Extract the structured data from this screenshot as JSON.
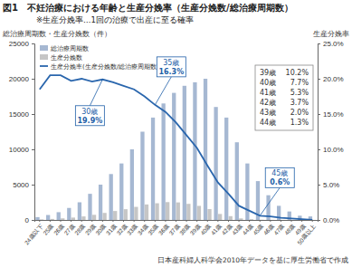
{
  "chart_data": {
    "type": "bar",
    "title": "図1　不妊治療における年齢と生産分娩率（生産分娩数/総治療周期数）",
    "subtitle": "※生産分娩率…1回の治療で出産に至る確率",
    "y_label": "総治療周期数・生産分娩数（件）",
    "y2_label": "生産分娩率",
    "source": "日本産科婦人科学会2010年データを基に厚生労働省で作成",
    "categories": [
      "24歳以下",
      "25歳",
      "26歳",
      "27歳",
      "28歳",
      "29歳",
      "30歳",
      "31歳",
      "32歳",
      "33歳",
      "34歳",
      "35歳",
      "36歳",
      "37歳",
      "38歳",
      "39歳",
      "40歳",
      "41歳",
      "42歳",
      "43歳",
      "44歳",
      "45歳",
      "46歳",
      "47歳",
      "48歳",
      "49歳",
      "50歳以上"
    ],
    "series": [
      {
        "name": "総治療周期数",
        "type": "bar",
        "color": "#a6b8d2",
        "values": [
          400,
          700,
          1100,
          1700,
          2500,
          3700,
          5000,
          6500,
          8000,
          10000,
          12500,
          14500,
          16500,
          18000,
          19000,
          19500,
          20000,
          16000,
          14500,
          11000,
          8000,
          5500,
          3500,
          2000,
          1200,
          600,
          500
        ]
      },
      {
        "name": "生産分娩数",
        "type": "bar",
        "color": "#c6c6c6",
        "values": [
          74,
          144,
          226,
          335,
          500,
          725,
          995,
          1268,
          1520,
          1850,
          2188,
          2364,
          2525,
          2484,
          2280,
          1989,
          1540,
          848,
          537,
          220,
          104,
          33,
          18,
          6,
          2,
          1,
          0
        ]
      },
      {
        "name": "生産分娩率(生産分娩数/総治療周期数)",
        "type": "line",
        "axis": "y2",
        "color": "#2a66ad",
        "values": [
          18.5,
          20.5,
          20.5,
          19.7,
          20.0,
          19.6,
          19.9,
          19.5,
          19.0,
          18.5,
          17.5,
          16.3,
          15.3,
          13.8,
          12.0,
          10.2,
          7.7,
          5.3,
          3.7,
          2.0,
          1.3,
          0.6,
          0.5,
          0.3,
          0.2,
          0.1,
          0.0
        ]
      }
    ],
    "ylim": [
      0,
      25000
    ],
    "yticks": [
      0,
      5000,
      10000,
      15000,
      20000,
      25000
    ],
    "y2lim": [
      0,
      25
    ],
    "y2ticks": [
      {
        "value": 0,
        "label": "0.0%"
      },
      {
        "value": 5,
        "label": "5.0%"
      },
      {
        "value": 10,
        "label": "10.0%"
      },
      {
        "value": 15,
        "label": "15.0%"
      },
      {
        "value": 20,
        "label": "20.0%"
      },
      {
        "value": 25,
        "label": "25.0%"
      }
    ],
    "grid": false,
    "legend": "upper-left",
    "annotations": [
      {
        "x": "30歳",
        "text": "19.9%"
      },
      {
        "x": "35歳",
        "text": "16.3%"
      },
      {
        "x": "45歳",
        "text": "0.6%"
      }
    ],
    "annotation_table": [
      {
        "x": "39歳",
        "text": "10.2%"
      },
      {
        "x": "40歳",
        "text": "7.7%"
      },
      {
        "x": "41歳",
        "text": "5.3%"
      },
      {
        "x": "42歳",
        "text": "3.7%"
      },
      {
        "x": "43歳",
        "text": "2.0%"
      },
      {
        "x": "44歳",
        "text": "1.3%"
      }
    ]
  }
}
